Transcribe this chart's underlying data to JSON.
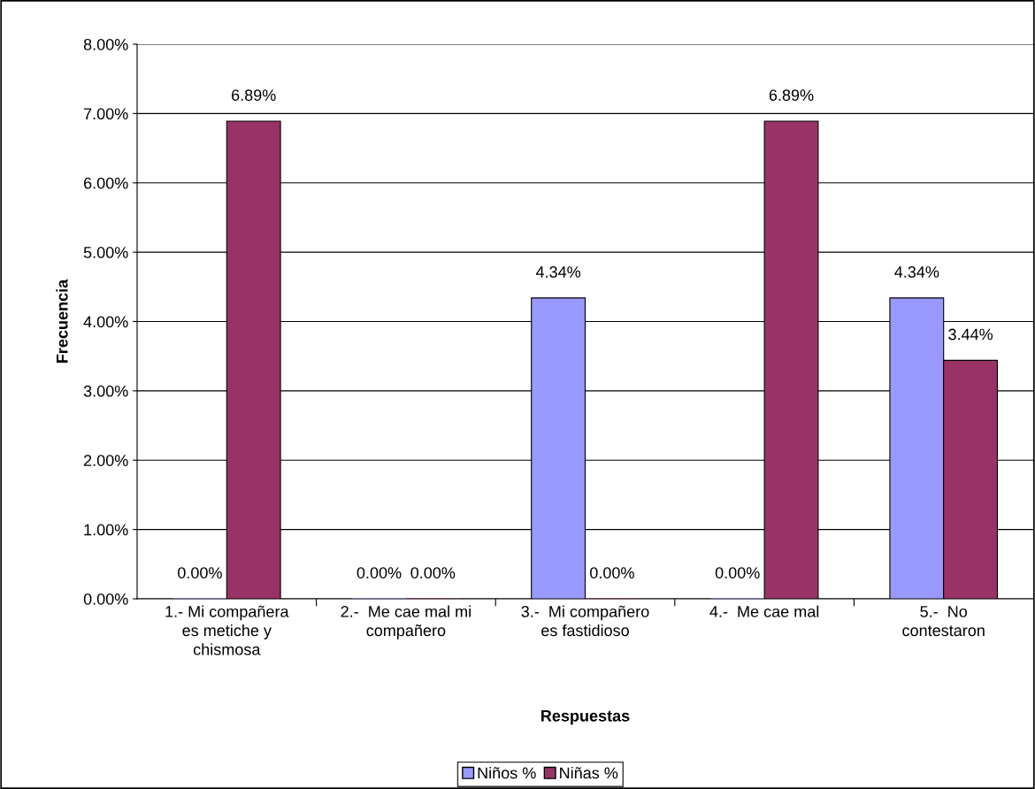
{
  "chart_data": {
    "type": "bar",
    "xlabel": "Respuestas",
    "ylabel": "Frecuencia",
    "categories": [
      "1.- Mi compañera\nes metiche y\nchismosa",
      "2.-  Me cae mal mi\ncompañero",
      "3.-  Mi compañero\nes fastidioso",
      "4.-  Me cae mal",
      "5.-  No\ncontestaron"
    ],
    "series": [
      {
        "name": "Niños %",
        "color": "#9999ff",
        "values": [
          0,
          0,
          4.34,
          0,
          4.34
        ],
        "value_labels": [
          "0.00%",
          "0.00%",
          "4.34%",
          "0.00%",
          "4.34%"
        ]
      },
      {
        "name": "Niñas %",
        "color": "#993366",
        "values": [
          6.89,
          0,
          0,
          6.89,
          3.44
        ],
        "value_labels": [
          "6.89%",
          "0.00%",
          "0.00%",
          "6.89%",
          "3.44%"
        ]
      }
    ],
    "ylim": [
      0,
      8
    ],
    "yticks": [
      {
        "value": 0,
        "label": "0.00%"
      },
      {
        "value": 1,
        "label": "1.00%"
      },
      {
        "value": 2,
        "label": "2.00%"
      },
      {
        "value": 3,
        "label": "3.00%"
      },
      {
        "value": 4,
        "label": "4.00%"
      },
      {
        "value": 5,
        "label": "5.00%"
      },
      {
        "value": 6,
        "label": "6.00%"
      },
      {
        "value": 7,
        "label": "7.00%"
      },
      {
        "value": 8,
        "label": "8.00%"
      }
    ],
    "grid": "y",
    "legend": "bottom"
  }
}
